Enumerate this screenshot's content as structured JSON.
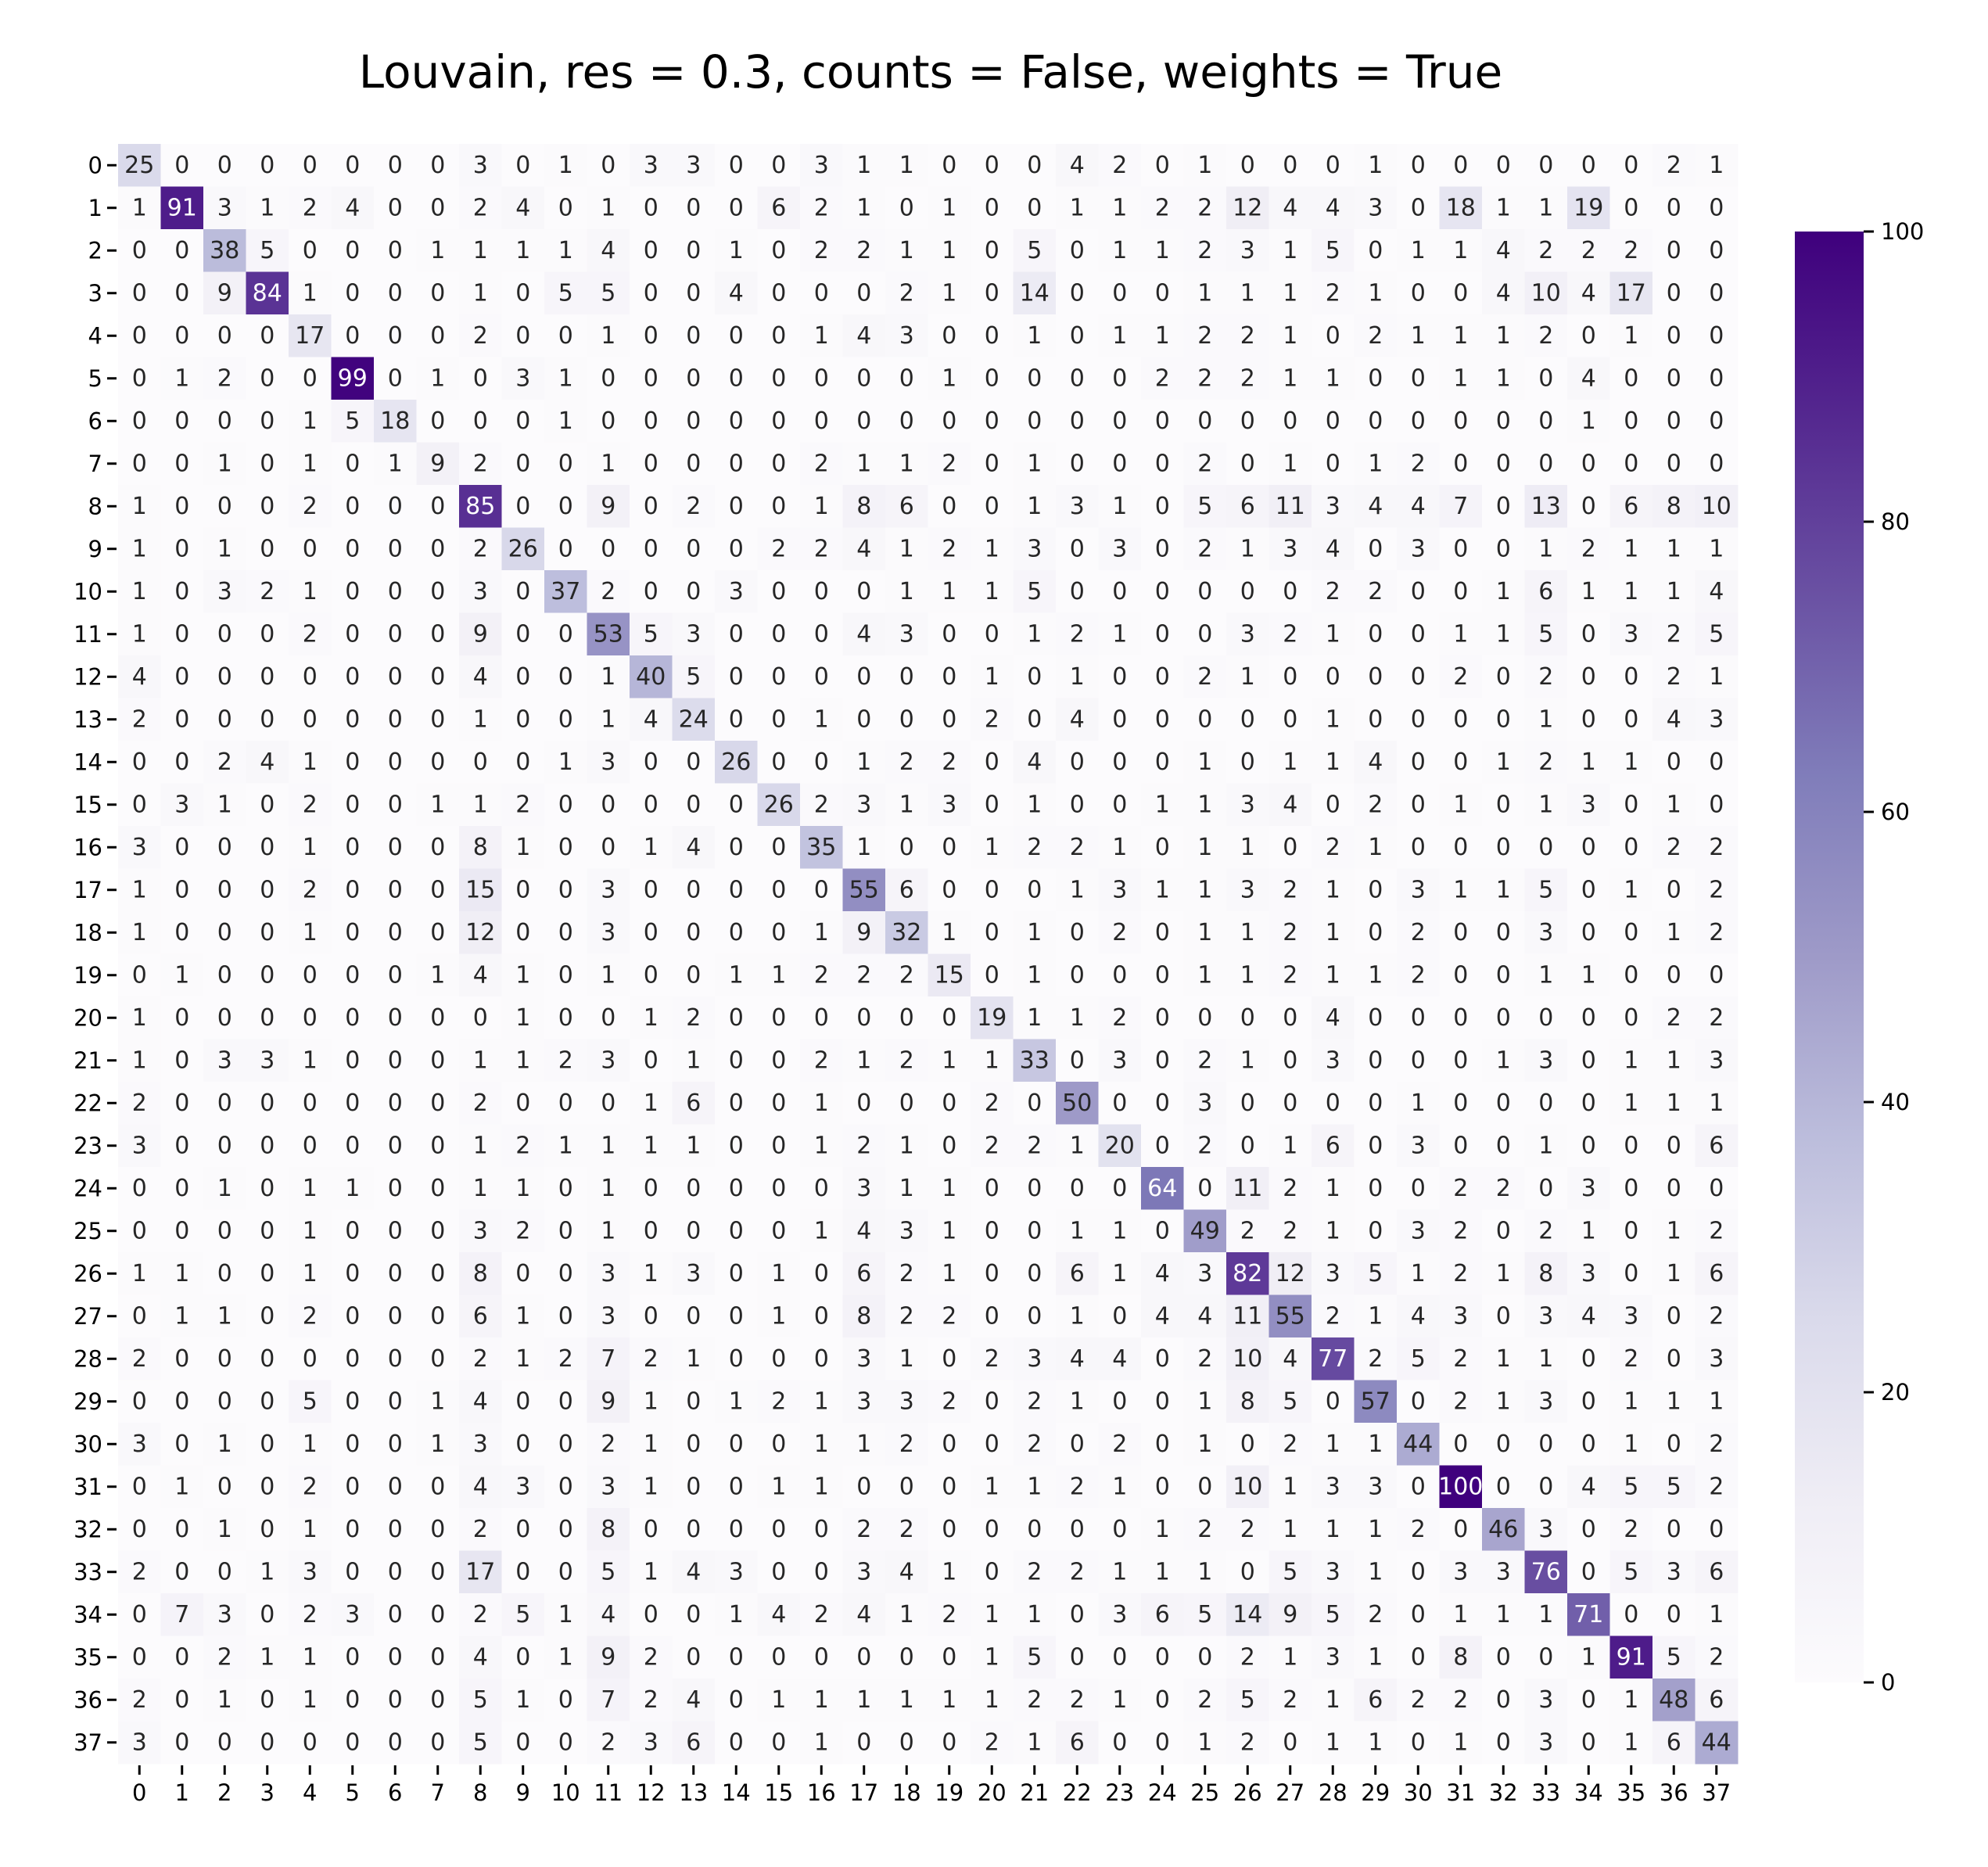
{
  "chart_data": {
    "type": "heatmap",
    "title": "Louvain, res = 0.3, counts = False, weights = True",
    "xlabel": "",
    "ylabel": "",
    "x_ticks": [
      "0",
      "1",
      "2",
      "3",
      "4",
      "5",
      "6",
      "7",
      "8",
      "9",
      "10",
      "11",
      "12",
      "13",
      "14",
      "15",
      "16",
      "17",
      "18",
      "19",
      "20",
      "21",
      "22",
      "23",
      "24",
      "25",
      "26",
      "27",
      "28",
      "29",
      "30",
      "31",
      "32",
      "33",
      "34",
      "35",
      "36",
      "37"
    ],
    "y_ticks": [
      "0",
      "1",
      "2",
      "3",
      "4",
      "5",
      "6",
      "7",
      "8",
      "9",
      "10",
      "11",
      "12",
      "13",
      "14",
      "15",
      "16",
      "17",
      "18",
      "19",
      "20",
      "21",
      "22",
      "23",
      "24",
      "25",
      "26",
      "27",
      "28",
      "29",
      "30",
      "31",
      "32",
      "33",
      "34",
      "35",
      "36",
      "37"
    ],
    "colormap": "Purples",
    "vmin": 0,
    "vmax": 100,
    "colorbar_ticks": [
      "0",
      "20",
      "40",
      "60",
      "80",
      "100"
    ],
    "values": [
      [
        25,
        0,
        0,
        0,
        0,
        0,
        0,
        0,
        3,
        0,
        1,
        0,
        3,
        3,
        0,
        0,
        3,
        1,
        1,
        0,
        0,
        0,
        4,
        2,
        0,
        1,
        0,
        0,
        0,
        1,
        0,
        0,
        0,
        0,
        0,
        0,
        2,
        1
      ],
      [
        1,
        91,
        3,
        1,
        2,
        4,
        0,
        0,
        2,
        4,
        0,
        1,
        0,
        0,
        0,
        6,
        2,
        1,
        0,
        1,
        0,
        0,
        1,
        1,
        2,
        2,
        12,
        4,
        4,
        3,
        0,
        18,
        1,
        1,
        19,
        0,
        0,
        0
      ],
      [
        0,
        0,
        38,
        5,
        0,
        0,
        0,
        1,
        1,
        1,
        1,
        4,
        0,
        0,
        1,
        0,
        2,
        2,
        1,
        1,
        0,
        5,
        0,
        1,
        1,
        2,
        3,
        1,
        5,
        0,
        1,
        1,
        4,
        2,
        2,
        2,
        0,
        0
      ],
      [
        0,
        0,
        9,
        84,
        1,
        0,
        0,
        0,
        1,
        0,
        5,
        5,
        0,
        0,
        4,
        0,
        0,
        0,
        2,
        1,
        0,
        14,
        0,
        0,
        0,
        1,
        1,
        1,
        2,
        1,
        0,
        0,
        4,
        10,
        4,
        17,
        0,
        0
      ],
      [
        0,
        0,
        0,
        0,
        17,
        0,
        0,
        0,
        2,
        0,
        0,
        1,
        0,
        0,
        0,
        0,
        1,
        4,
        3,
        0,
        0,
        1,
        0,
        1,
        1,
        2,
        2,
        1,
        0,
        2,
        1,
        1,
        1,
        2,
        0,
        1,
        0,
        0
      ],
      [
        0,
        1,
        2,
        0,
        0,
        99,
        0,
        1,
        0,
        3,
        1,
        0,
        0,
        0,
        0,
        0,
        0,
        0,
        0,
        1,
        0,
        0,
        0,
        0,
        2,
        2,
        2,
        1,
        1,
        0,
        0,
        1,
        1,
        0,
        4,
        0,
        0,
        0
      ],
      [
        0,
        0,
        0,
        0,
        1,
        5,
        18,
        0,
        0,
        0,
        1,
        0,
        0,
        0,
        0,
        0,
        0,
        0,
        0,
        0,
        0,
        0,
        0,
        0,
        0,
        0,
        0,
        0,
        0,
        0,
        0,
        0,
        0,
        0,
        1,
        0,
        0,
        0
      ],
      [
        0,
        0,
        1,
        0,
        1,
        0,
        1,
        9,
        2,
        0,
        0,
        1,
        0,
        0,
        0,
        0,
        2,
        1,
        1,
        2,
        0,
        1,
        0,
        0,
        0,
        2,
        0,
        1,
        0,
        1,
        2,
        0,
        0,
        0,
        0,
        0,
        0,
        0
      ],
      [
        1,
        0,
        0,
        0,
        2,
        0,
        0,
        0,
        85,
        0,
        0,
        9,
        0,
        2,
        0,
        0,
        1,
        8,
        6,
        0,
        0,
        1,
        3,
        1,
        0,
        5,
        6,
        11,
        3,
        4,
        4,
        7,
        0,
        13,
        0,
        6,
        8,
        10
      ],
      [
        1,
        0,
        1,
        0,
        0,
        0,
        0,
        0,
        2,
        26,
        0,
        0,
        0,
        0,
        0,
        2,
        2,
        4,
        1,
        2,
        1,
        3,
        0,
        3,
        0,
        2,
        1,
        3,
        4,
        0,
        3,
        0,
        0,
        1,
        2,
        1,
        1,
        1
      ],
      [
        1,
        0,
        3,
        2,
        1,
        0,
        0,
        0,
        3,
        0,
        37,
        2,
        0,
        0,
        3,
        0,
        0,
        0,
        1,
        1,
        1,
        5,
        0,
        0,
        0,
        0,
        0,
        0,
        2,
        2,
        0,
        0,
        1,
        6,
        1,
        1,
        1,
        4
      ],
      [
        1,
        0,
        0,
        0,
        2,
        0,
        0,
        0,
        9,
        0,
        0,
        53,
        5,
        3,
        0,
        0,
        0,
        4,
        3,
        0,
        0,
        1,
        2,
        1,
        0,
        0,
        3,
        2,
        1,
        0,
        0,
        1,
        1,
        5,
        0,
        3,
        2,
        5
      ],
      [
        4,
        0,
        0,
        0,
        0,
        0,
        0,
        0,
        4,
        0,
        0,
        1,
        40,
        5,
        0,
        0,
        0,
        0,
        0,
        0,
        1,
        0,
        1,
        0,
        0,
        2,
        1,
        0,
        0,
        0,
        0,
        2,
        0,
        2,
        0,
        0,
        2,
        1
      ],
      [
        2,
        0,
        0,
        0,
        0,
        0,
        0,
        0,
        1,
        0,
        0,
        1,
        4,
        24,
        0,
        0,
        1,
        0,
        0,
        0,
        2,
        0,
        4,
        0,
        0,
        0,
        0,
        0,
        1,
        0,
        0,
        0,
        0,
        1,
        0,
        0,
        4,
        3
      ],
      [
        0,
        0,
        2,
        4,
        1,
        0,
        0,
        0,
        0,
        0,
        1,
        3,
        0,
        0,
        26,
        0,
        0,
        1,
        2,
        2,
        0,
        4,
        0,
        0,
        0,
        1,
        0,
        1,
        1,
        4,
        0,
        0,
        1,
        2,
        1,
        1,
        0,
        0
      ],
      [
        0,
        3,
        1,
        0,
        2,
        0,
        0,
        1,
        1,
        2,
        0,
        0,
        0,
        0,
        0,
        26,
        2,
        3,
        1,
        3,
        0,
        1,
        0,
        0,
        1,
        1,
        3,
        4,
        0,
        2,
        0,
        1,
        0,
        1,
        3,
        0,
        1,
        0
      ],
      [
        3,
        0,
        0,
        0,
        1,
        0,
        0,
        0,
        8,
        1,
        0,
        0,
        1,
        4,
        0,
        0,
        35,
        1,
        0,
        0,
        1,
        2,
        2,
        1,
        0,
        1,
        1,
        0,
        2,
        1,
        0,
        0,
        0,
        0,
        0,
        0,
        2,
        2
      ],
      [
        1,
        0,
        0,
        0,
        2,
        0,
        0,
        0,
        15,
        0,
        0,
        3,
        0,
        0,
        0,
        0,
        0,
        55,
        6,
        0,
        0,
        0,
        1,
        3,
        1,
        1,
        3,
        2,
        1,
        0,
        3,
        1,
        1,
        5,
        0,
        1,
        0,
        2
      ],
      [
        1,
        0,
        0,
        0,
        1,
        0,
        0,
        0,
        12,
        0,
        0,
        3,
        0,
        0,
        0,
        0,
        1,
        9,
        32,
        1,
        0,
        1,
        0,
        2,
        0,
        1,
        1,
        2,
        1,
        0,
        2,
        0,
        0,
        3,
        0,
        0,
        1,
        2
      ],
      [
        0,
        1,
        0,
        0,
        0,
        0,
        0,
        1,
        4,
        1,
        0,
        1,
        0,
        0,
        1,
        1,
        2,
        2,
        2,
        15,
        0,
        1,
        0,
        0,
        0,
        1,
        1,
        2,
        1,
        1,
        2,
        0,
        0,
        1,
        1,
        0,
        0,
        0
      ],
      [
        1,
        0,
        0,
        0,
        0,
        0,
        0,
        0,
        0,
        1,
        0,
        0,
        1,
        2,
        0,
        0,
        0,
        0,
        0,
        0,
        19,
        1,
        1,
        2,
        0,
        0,
        0,
        0,
        4,
        0,
        0,
        0,
        0,
        0,
        0,
        0,
        2,
        2
      ],
      [
        1,
        0,
        3,
        3,
        1,
        0,
        0,
        0,
        1,
        1,
        2,
        3,
        0,
        1,
        0,
        0,
        2,
        1,
        2,
        1,
        1,
        33,
        0,
        3,
        0,
        2,
        1,
        0,
        3,
        0,
        0,
        0,
        1,
        3,
        0,
        1,
        1,
        3
      ],
      [
        2,
        0,
        0,
        0,
        0,
        0,
        0,
        0,
        2,
        0,
        0,
        0,
        1,
        6,
        0,
        0,
        1,
        0,
        0,
        0,
        2,
        0,
        50,
        0,
        0,
        3,
        0,
        0,
        0,
        0,
        1,
        0,
        0,
        0,
        0,
        1,
        1,
        1
      ],
      [
        3,
        0,
        0,
        0,
        0,
        0,
        0,
        0,
        1,
        2,
        1,
        1,
        1,
        1,
        0,
        0,
        1,
        2,
        1,
        0,
        2,
        2,
        1,
        20,
        0,
        2,
        0,
        1,
        6,
        0,
        3,
        0,
        0,
        1,
        0,
        0,
        0,
        6
      ],
      [
        0,
        0,
        1,
        0,
        1,
        1,
        0,
        0,
        1,
        1,
        0,
        1,
        0,
        0,
        0,
        0,
        0,
        3,
        1,
        1,
        0,
        0,
        0,
        0,
        64,
        0,
        11,
        2,
        1,
        0,
        0,
        2,
        2,
        0,
        3,
        0,
        0,
        0
      ],
      [
        0,
        0,
        0,
        0,
        1,
        0,
        0,
        0,
        3,
        2,
        0,
        1,
        0,
        0,
        0,
        0,
        1,
        4,
        3,
        1,
        0,
        0,
        1,
        1,
        0,
        49,
        2,
        2,
        1,
        0,
        3,
        2,
        0,
        2,
        1,
        0,
        1,
        2
      ],
      [
        1,
        1,
        0,
        0,
        1,
        0,
        0,
        0,
        8,
        0,
        0,
        3,
        1,
        3,
        0,
        1,
        0,
        6,
        2,
        1,
        0,
        0,
        6,
        1,
        4,
        3,
        82,
        12,
        3,
        5,
        1,
        2,
        1,
        8,
        3,
        0,
        1,
        6
      ],
      [
        0,
        1,
        1,
        0,
        2,
        0,
        0,
        0,
        6,
        1,
        0,
        3,
        0,
        0,
        0,
        1,
        0,
        8,
        2,
        2,
        0,
        0,
        1,
        0,
        4,
        4,
        11,
        55,
        2,
        1,
        4,
        3,
        0,
        3,
        4,
        3,
        0,
        2
      ],
      [
        2,
        0,
        0,
        0,
        0,
        0,
        0,
        0,
        2,
        1,
        2,
        7,
        2,
        1,
        0,
        0,
        0,
        3,
        1,
        0,
        2,
        3,
        4,
        4,
        0,
        2,
        10,
        4,
        77,
        2,
        5,
        2,
        1,
        1,
        0,
        2,
        0,
        3
      ],
      [
        0,
        0,
        0,
        0,
        5,
        0,
        0,
        1,
        4,
        0,
        0,
        9,
        1,
        0,
        1,
        2,
        1,
        3,
        3,
        2,
        0,
        2,
        1,
        0,
        0,
        1,
        8,
        5,
        0,
        57,
        0,
        2,
        1,
        3,
        0,
        1,
        1,
        1
      ],
      [
        3,
        0,
        1,
        0,
        1,
        0,
        0,
        1,
        3,
        0,
        0,
        2,
        1,
        0,
        0,
        0,
        1,
        1,
        2,
        0,
        0,
        2,
        0,
        2,
        0,
        1,
        0,
        2,
        1,
        1,
        44,
        0,
        0,
        0,
        0,
        1,
        0,
        2
      ],
      [
        0,
        1,
        0,
        0,
        2,
        0,
        0,
        0,
        4,
        3,
        0,
        3,
        1,
        0,
        0,
        1,
        1,
        0,
        0,
        0,
        1,
        1,
        2,
        1,
        0,
        0,
        10,
        1,
        3,
        3,
        0,
        100,
        0,
        0,
        4,
        5,
        5,
        2
      ],
      [
        0,
        0,
        1,
        0,
        1,
        0,
        0,
        0,
        2,
        0,
        0,
        8,
        0,
        0,
        0,
        0,
        0,
        2,
        2,
        0,
        0,
        0,
        0,
        0,
        1,
        2,
        2,
        1,
        1,
        1,
        2,
        0,
        46,
        3,
        0,
        2,
        0,
        0
      ],
      [
        2,
        0,
        0,
        1,
        3,
        0,
        0,
        0,
        17,
        0,
        0,
        5,
        1,
        4,
        3,
        0,
        0,
        3,
        4,
        1,
        0,
        2,
        2,
        1,
        1,
        1,
        0,
        5,
        3,
        1,
        0,
        3,
        3,
        76,
        0,
        5,
        3,
        6
      ],
      [
        0,
        7,
        3,
        0,
        2,
        3,
        0,
        0,
        2,
        5,
        1,
        4,
        0,
        0,
        1,
        4,
        2,
        4,
        1,
        2,
        1,
        1,
        0,
        3,
        6,
        5,
        14,
        9,
        5,
        2,
        0,
        1,
        1,
        1,
        71,
        0,
        0,
        1
      ],
      [
        0,
        0,
        2,
        1,
        1,
        0,
        0,
        0,
        4,
        0,
        1,
        9,
        2,
        0,
        0,
        0,
        0,
        0,
        0,
        0,
        1,
        5,
        0,
        0,
        0,
        0,
        2,
        1,
        3,
        1,
        0,
        8,
        0,
        0,
        1,
        91,
        5,
        2
      ],
      [
        2,
        0,
        1,
        0,
        1,
        0,
        0,
        0,
        5,
        1,
        0,
        7,
        2,
        4,
        0,
        1,
        1,
        1,
        1,
        1,
        1,
        2,
        2,
        1,
        0,
        2,
        5,
        2,
        1,
        6,
        2,
        2,
        0,
        3,
        0,
        1,
        48,
        6
      ],
      [
        3,
        0,
        0,
        0,
        0,
        0,
        0,
        0,
        5,
        0,
        0,
        2,
        3,
        6,
        0,
        0,
        1,
        0,
        0,
        0,
        2,
        1,
        6,
        0,
        0,
        1,
        2,
        0,
        1,
        1,
        0,
        1,
        0,
        3,
        0,
        1,
        6,
        44
      ]
    ]
  }
}
